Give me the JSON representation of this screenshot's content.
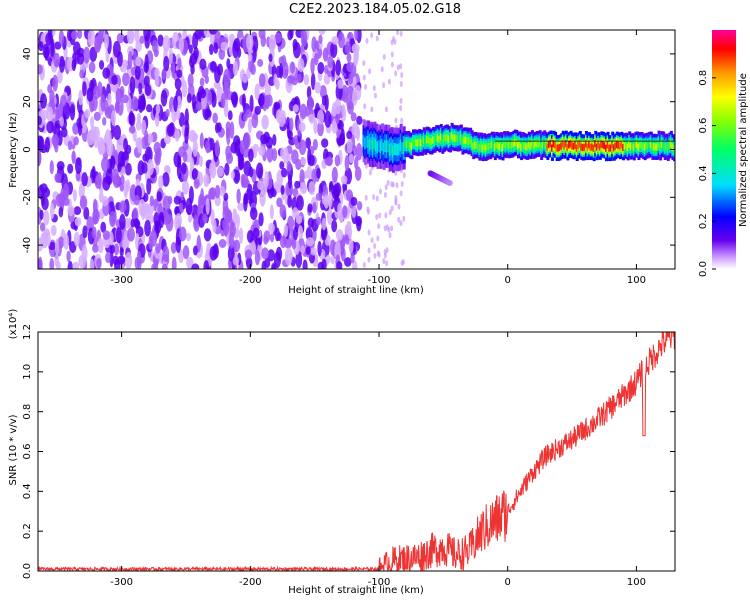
{
  "title": "C2E2.2023.184.05.02.G18",
  "chart_data": [
    {
      "type": "heatmap",
      "xlabel": "Height of straight line (km)",
      "ylabel": "Frequency (Hz)",
      "xlim": [
        -365,
        130
      ],
      "ylim": [
        -50,
        50
      ],
      "x_ticks": [
        -300,
        -200,
        -100,
        0,
        100
      ],
      "y_ticks": [
        -40,
        -20,
        0,
        20,
        40
      ],
      "colorbar": {
        "label": "Normalized spectral amplitude",
        "range": [
          0.0,
          1.0
        ],
        "ticks": [
          "0.0",
          "0.2",
          "0.4",
          "0.6",
          "0.8"
        ]
      },
      "regions": [
        {
          "x_range": [
            -365,
            -115
          ],
          "frequency_range": [
            -50,
            50
          ],
          "amplitude": 0.1
        },
        {
          "x_range": [
            -112,
            -80
          ],
          "frequency_range": [
            -8,
            12
          ],
          "amplitude": 0.35
        },
        {
          "x_range": [
            -80,
            130
          ],
          "frequency": 1.5,
          "frequency_spread": 3,
          "amplitude": 0.55
        },
        {
          "x_range": [
            30,
            90
          ],
          "frequency": 1.5,
          "amplitude": 0.9
        }
      ],
      "ridge_frequency": [
        {
          "x": -112,
          "f": 3
        },
        {
          "x": -90,
          "f": 0
        },
        {
          "x": -60,
          "f": 4
        },
        {
          "x": -40,
          "f": 5
        },
        {
          "x": -20,
          "f": 1
        },
        {
          "x": 0,
          "f": 2
        },
        {
          "x": 40,
          "f": 1.5
        },
        {
          "x": 100,
          "f": 1.5
        },
        {
          "x": 130,
          "f": 1.5
        }
      ],
      "secondary_track": {
        "x_range": [
          -60,
          -45
        ],
        "f_range": [
          -10,
          -14
        ]
      },
      "grid": false
    },
    {
      "type": "line",
      "xlabel": "Height of straight line (km)",
      "ylabel": "SNR (10 * v/v)",
      "y_multiplier": "(x10⁴)",
      "xlim": [
        -365,
        130
      ],
      "ylim": [
        0.0,
        1.2
      ],
      "x_ticks": [
        -300,
        -200,
        -100,
        0,
        100
      ],
      "y_ticks": [
        "0.0",
        "0.2",
        "0.4",
        "0.6",
        "0.8",
        "1.0",
        "1.2"
      ],
      "series": [
        {
          "color": "#ee3333",
          "x": [
            -365,
            -300,
            -200,
            -120,
            -100,
            -90,
            -80,
            -70,
            -60,
            -50,
            -40,
            -30,
            -20,
            -10,
            0,
            10,
            20,
            30,
            40,
            50,
            60,
            70,
            80,
            90,
            100,
            110,
            120,
            130
          ],
          "y": [
            0.01,
            0.01,
            0.01,
            0.01,
            0.01,
            0.05,
            0.06,
            0.07,
            0.1,
            0.12,
            0.08,
            0.1,
            0.2,
            0.25,
            0.3,
            0.4,
            0.5,
            0.58,
            0.62,
            0.66,
            0.71,
            0.76,
            0.82,
            0.88,
            0.95,
            1.05,
            1.14,
            1.19
          ]
        }
      ],
      "grid": false
    }
  ]
}
